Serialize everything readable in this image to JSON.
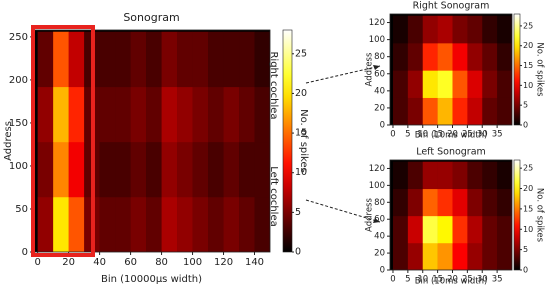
{
  "chart_data": [
    {
      "type": "heatmap",
      "title": "Sonogram",
      "xlabel": "Bin (10000μs width)",
      "ylabel": "Address",
      "colorbar_label": "No. of spikes",
      "annotations": [
        "Right cochlea",
        "Left cochlea"
      ],
      "colormap": "hot",
      "x_edges": [
        0,
        10,
        20,
        30,
        40,
        50,
        60,
        70,
        80,
        90,
        100,
        110,
        120,
        130,
        140,
        150
      ],
      "y_edges": [
        0,
        64,
        128,
        192,
        256
      ],
      "values": [
        [
          6,
          20,
          14,
          5,
          4,
          4,
          5,
          4,
          7,
          6,
          5,
          4,
          5,
          4,
          3
        ],
        [
          5,
          16,
          10,
          4,
          3,
          3,
          4,
          3,
          6,
          5,
          4,
          3,
          4,
          3,
          3
        ],
        [
          6,
          18,
          12,
          4,
          4,
          4,
          5,
          4,
          7,
          6,
          5,
          4,
          5,
          4,
          3
        ],
        [
          4,
          14,
          8,
          3,
          3,
          3,
          4,
          3,
          5,
          4,
          4,
          3,
          3,
          3,
          2
        ]
      ],
      "xlim": [
        -3,
        150
      ],
      "ylim": [
        0,
        258
      ],
      "xticks": [
        0,
        20,
        40,
        60,
        80,
        100,
        120,
        140
      ],
      "yticks": [
        0,
        50,
        100,
        150,
        200,
        250
      ],
      "clim": [
        0,
        28
      ],
      "cticks": [
        0,
        5,
        10,
        15,
        20,
        25
      ]
    },
    {
      "type": "heatmap",
      "title": "Right Sonogram",
      "xlabel": "Bin (10ms width)",
      "ylabel": "Address",
      "colorbar_label": "No. of spikes",
      "colormap": "hot",
      "x_edges": [
        0,
        5,
        10,
        15,
        20,
        25,
        30,
        35,
        40
      ],
      "y_edges": [
        0,
        32,
        64,
        96,
        128
      ],
      "values": [
        [
          3,
          5,
          14,
          18,
          12,
          8,
          4,
          3
        ],
        [
          3,
          6,
          20,
          22,
          14,
          9,
          5,
          3
        ],
        [
          2,
          4,
          12,
          14,
          10,
          6,
          4,
          2
        ],
        [
          1,
          3,
          6,
          7,
          5,
          4,
          2,
          1
        ]
      ],
      "xlim": [
        -1,
        40
      ],
      "ylim": [
        0,
        130
      ],
      "xticks": [
        0,
        5,
        10,
        15,
        20,
        25,
        30,
        35
      ],
      "yticks": [
        0,
        20,
        40,
        60,
        80,
        100,
        120
      ],
      "clim": [
        0,
        28
      ],
      "cticks": [
        0,
        5,
        10,
        15,
        20,
        25
      ]
    },
    {
      "type": "heatmap",
      "title": "Left Sonogram",
      "xlabel": "Bin (10ms width)",
      "ylabel": "Address",
      "colorbar_label": "No. of spikes",
      "colormap": "hot",
      "x_edges": [
        0,
        5,
        10,
        15,
        20,
        25,
        30,
        35,
        40
      ],
      "y_edges": [
        0,
        32,
        64,
        96,
        128
      ],
      "values": [
        [
          3,
          6,
          18,
          16,
          10,
          6,
          4,
          3
        ],
        [
          3,
          8,
          22,
          20,
          12,
          7,
          4,
          3
        ],
        [
          2,
          5,
          14,
          12,
          9,
          5,
          3,
          2
        ],
        [
          1,
          3,
          6,
          6,
          5,
          3,
          2,
          1
        ]
      ],
      "xlim": [
        -1,
        40
      ],
      "ylim": [
        0,
        130
      ],
      "xticks": [
        0,
        5,
        10,
        15,
        20,
        25,
        30,
        35
      ],
      "yticks": [
        0,
        20,
        40,
        60,
        80,
        100,
        120
      ],
      "clim": [
        0,
        27
      ],
      "cticks": [
        0,
        5,
        10,
        15,
        20,
        25
      ]
    }
  ]
}
